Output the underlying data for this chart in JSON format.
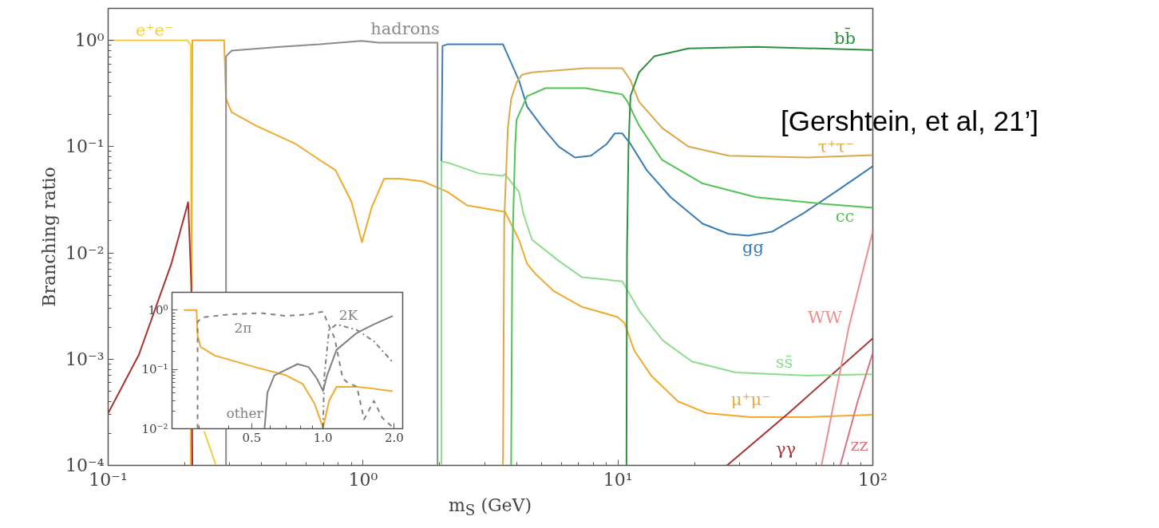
{
  "chart_data": [
    {
      "type": "line",
      "xlabel": "m$_{S}$ (GeV)",
      "ylabel": "Branching ratio",
      "log": "xy",
      "xlim": [
        0.1,
        100
      ],
      "ylim": [
        0.0001,
        2
      ],
      "xticks": [
        {
          "value": 0.1,
          "label": "10⁻¹"
        },
        {
          "value": 1,
          "label": "10⁰"
        },
        {
          "value": 10,
          "label": "10¹"
        },
        {
          "value": 100,
          "label": "10²"
        }
      ],
      "yticks": [
        {
          "value": 0.0001,
          "label": "10⁻⁴"
        },
        {
          "value": 0.001,
          "label": "10⁻³"
        },
        {
          "value": 0.01,
          "label": "10⁻²"
        },
        {
          "value": 0.1,
          "label": "10⁻¹"
        },
        {
          "value": 1,
          "label": "10⁰"
        }
      ],
      "annotations": [
        "[Gershtein, et al, 21’]"
      ],
      "series": [
        {
          "name": "e⁺e⁻",
          "color": "#f2cf3a",
          "x": [
            0.1,
            0.205,
            0.211,
            0.212,
            0.22,
            0.238,
            0.265
          ],
          "values": [
            1,
            1,
            0.9,
            0.005,
            null,
            0.00021,
            0.0001
          ]
        },
        {
          "name": "μ⁺μ⁻",
          "color": "#f0aa2c",
          "x": [
            0.211,
            0.214,
            0.285,
            0.29,
            0.305,
            0.379,
            0.544,
            0.675,
            0.78,
            0.902,
            0.99,
            1.08,
            1.21,
            1.39,
            1.72,
            2.14,
            2.56,
            3.54,
            3.6,
            4.09,
            4.4,
            4.76,
            5.58,
            7.23,
            9.93,
            10.6,
            11.6,
            13.5,
            17.2,
            22.3,
            33.1,
            56,
            100
          ],
          "values": [
            0.0001,
            1,
            1,
            0.282,
            0.211,
            0.158,
            0.106,
            0.075,
            0.06,
            0.03,
            0.0126,
            0.0266,
            0.05,
            0.05,
            0.047,
            0.0376,
            0.028,
            0.0245,
            0.0245,
            0.0133,
            0.0079,
            0.0063,
            0.0044,
            0.0031,
            0.0025,
            0.0022,
            0.0012,
            0.0007,
            0.0004,
            0.00031,
            0.000285,
            0.000285,
            0.0003
          ]
        },
        {
          "name": "γγ",
          "color": "#a83232",
          "x": [
            0.1,
            0.132,
            0.177,
            0.206,
            0.212,
            0.214,
            0.5,
            26.8,
            46.4,
            100
          ],
          "values": [
            0.00031,
            0.0011,
            0.0079,
            0.03,
            0.005,
            0.0001,
            null,
            0.0001,
            0.000306,
            0.00157
          ]
        },
        {
          "name": "hadrons",
          "color": "#8c8c8c",
          "x": [
            0.29,
            0.29,
            0.305,
            0.471,
            0.675,
            0.99,
            1.15,
            1.96,
            1.96
          ],
          "values": [
            0.0001,
            0.708,
            0.8,
            0.87,
            0.917,
            0.99,
            0.95,
            0.95,
            0.0001
          ]
        },
        {
          "name": "gg",
          "color": "#3a7db4",
          "x": [
            2.03,
            2.05,
            2.14,
            3.54,
            4.09,
            4.4,
            5.08,
            5.86,
            6.78,
            7.83,
            9.04,
            9.71,
            10.4,
            11.2,
            12.97,
            16.1,
            21.5,
            27.2,
            32.4,
            40.2,
            53.6,
            71.5,
            100
          ],
          "values": [
            0.073,
            0.886,
            0.917,
            0.917,
            0.42,
            0.238,
            0.15,
            0.1,
            0.079,
            0.082,
            0.106,
            0.133,
            0.133,
            0.106,
            0.06,
            0.0334,
            0.0188,
            0.0151,
            0.0145,
            0.0158,
            0.0237,
            0.0376,
            0.0654
          ]
        },
        {
          "name": "ss̄",
          "color": "#8edc8e",
          "x": [
            2.03,
            2.03,
            2.14,
            2.85,
            3.54,
            3.6,
            4.09,
            4.25,
            4.6,
            5.86,
            7.23,
            10.4,
            12.2,
            15,
            19.5,
            29,
            56,
            100
          ],
          "values": [
            0.0001,
            0.072,
            0.071,
            0.056,
            0.053,
            0.055,
            0.0376,
            0.0236,
            0.0133,
            0.0084,
            0.0059,
            0.0054,
            0.0028,
            0.0015,
            0.00095,
            0.00075,
            0.0007,
            0.00072
          ]
        },
        {
          "name": "τ⁺τ⁻",
          "color": "#dba84a",
          "x": [
            3.54,
            3.58,
            3.7,
            3.81,
            4,
            4.2,
            4.6,
            7.46,
            10.4,
            11.2,
            12.1,
            14.9,
            18.9,
            27.2,
            56,
            100
          ],
          "values": [
            0.0001,
            0.02,
            0.15,
            0.28,
            0.4,
            0.475,
            0.5,
            0.547,
            0.547,
            0.42,
            0.264,
            0.15,
            0.1,
            0.082,
            0.079,
            0.083
          ]
        },
        {
          "name": "cc",
          "color": "#55c255",
          "x": [
            3.81,
            3.85,
            3.95,
            4,
            4.4,
            5.2,
            7.46,
            10.4,
            10.9,
            12.1,
            14.9,
            21.5,
            34.8,
            63.2,
            100
          ],
          "values": [
            0.0001,
            0.01,
            0.1,
            0.178,
            0.298,
            0.355,
            0.355,
            0.31,
            0.265,
            0.158,
            0.075,
            0.045,
            0.0334,
            0.029,
            0.0266
          ]
        },
        {
          "name": "bb̄",
          "color": "#2f8f40",
          "x": [
            10.8,
            10.85,
            11,
            11.2,
            12.1,
            13.9,
            18.9,
            34.8,
            100
          ],
          "values": [
            0.0001,
            0.01,
            0.1,
            0.3,
            0.5,
            0.71,
            0.84,
            0.87,
            0.81
          ]
        },
        {
          "name": "WW",
          "color": "#ea9090",
          "x": [
            62.9,
            80.5,
            100
          ],
          "values": [
            0.0001,
            0.002,
            0.016
          ]
        },
        {
          "name": "zz",
          "color": "#d9737d",
          "x": [
            74.5,
            87.2,
            100
          ],
          "values": [
            0.0001,
            0.0004,
            0.00115
          ]
        }
      ]
    },
    {
      "type": "line",
      "log": "xy",
      "xlim": [
        0.23,
        2.17
      ],
      "ylim": [
        0.01,
        2
      ],
      "xticks": [
        {
          "value": 0.5,
          "label": "0.5"
        },
        {
          "value": 1,
          "label": "1.0"
        },
        {
          "value": 2,
          "label": "2.0"
        }
      ],
      "yticks": [
        {
          "value": 0.01,
          "label": "10⁻²"
        },
        {
          "value": 0.1,
          "label": "10⁻¹"
        },
        {
          "value": 1,
          "label": "10⁰"
        }
      ],
      "series": [
        {
          "color": "#f0aa2c",
          "x": [
            0.258,
            0.292,
            0.295,
            0.304,
            0.349,
            0.514,
            0.697,
            0.82,
            0.92,
            1,
            1.06,
            1.14,
            1.39,
            1.59,
            1.97
          ],
          "values": [
            1,
            1,
            0.371,
            0.239,
            0.171,
            0.11,
            0.0795,
            0.057,
            0.0265,
            0.0104,
            0.0295,
            0.051,
            0.051,
            0.048,
            0.043
          ]
        },
        {
          "name": "2π",
          "color": "#808080",
          "line_style": "dashed",
          "x": [
            0.295,
            0.295,
            0.313,
            0.401,
            0.542,
            0.697,
            0.868,
            1,
            1.04,
            1.12,
            1.21,
            1.27,
            1.39,
            1.49,
            1.64,
            1.78,
            1.95
          ],
          "values": [
            0.01,
            0.643,
            0.76,
            0.848,
            0.896,
            0.8,
            0.848,
            0.946,
            0.643,
            0.332,
            0.071,
            0.06,
            0.051,
            0.0144,
            0.0295,
            0.0152,
            0.011
          ]
        },
        {
          "name": "2K",
          "color": "#808080",
          "line_style": "dashdot",
          "x": [
            1,
            1.01,
            1.06,
            1.14,
            1.39,
            1.64,
            1.95
          ],
          "values": [
            0.0104,
            0.071,
            0.463,
            0.577,
            0.463,
            0.298,
            0.138
          ]
        },
        {
          "name": "other",
          "color": "#808080",
          "line_style": "solid",
          "x": [
            0.566,
            0.582,
            0.623,
            0.78,
            0.868,
            0.94,
            1,
            1.04,
            1.14,
            1.39,
            1.64,
            1.97
          ],
          "values": [
            0.01,
            0.0409,
            0.0795,
            0.123,
            0.11,
            0.071,
            0.0434,
            0.0795,
            0.214,
            0.414,
            0.577,
            0.8
          ]
        }
      ]
    }
  ]
}
